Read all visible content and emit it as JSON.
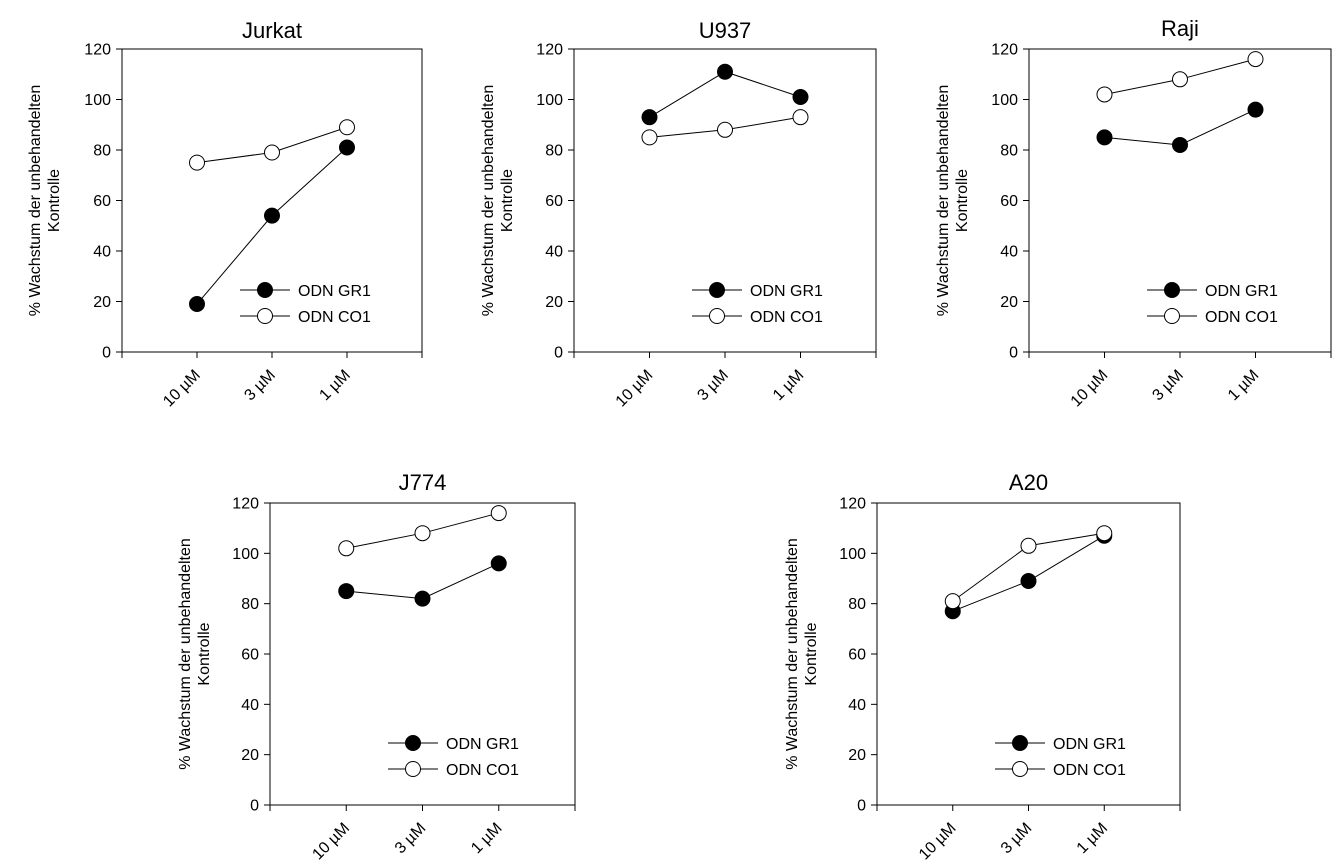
{
  "colors": {
    "filled": "#000000",
    "open": "#ffffff",
    "line": "#000000"
  },
  "chart_data": [
    {
      "type": "line",
      "title": "Jurkat",
      "ylabel_lines": [
        "% Wachstum der unbehandelten",
        "Kontrolle"
      ],
      "categories": [
        "10 µM",
        "3 µM",
        "1 µM"
      ],
      "ylim": [
        0,
        120
      ],
      "yticks": [
        "0",
        "20",
        "40",
        "60",
        "80",
        "100",
        "120"
      ],
      "legend": "bottom-right",
      "series": [
        {
          "name": "ODN GR1",
          "marker": "filled",
          "values": [
            19,
            54,
            81
          ]
        },
        {
          "name": "ODN CO1",
          "marker": "open",
          "values": [
            75,
            79,
            89
          ]
        }
      ]
    },
    {
      "type": "line",
      "title": "U937",
      "ylabel_lines": [
        "% Wachstum der unbehandelten",
        "Kontrolle"
      ],
      "categories": [
        "10 µM",
        "3 µM",
        "1 µM"
      ],
      "ylim": [
        0,
        120
      ],
      "yticks": [
        "0",
        "20",
        "40",
        "60",
        "80",
        "100",
        "120"
      ],
      "legend": "bottom-right",
      "series": [
        {
          "name": "ODN GR1",
          "marker": "filled",
          "values": [
            93,
            111,
            101
          ]
        },
        {
          "name": "ODN CO1",
          "marker": "open",
          "values": [
            85,
            88,
            93
          ]
        }
      ]
    },
    {
      "type": "line",
      "title": "Raji",
      "ylabel_lines": [
        "% Wachstum der unbehandelten",
        "Kontrolle"
      ],
      "categories": [
        "10 µM",
        "3 µM",
        "1 µM"
      ],
      "ylim": [
        0,
        120
      ],
      "yticks": [
        "0",
        "20",
        "40",
        "60",
        "80",
        "100",
        "120"
      ],
      "legend": "bottom-right",
      "series": [
        {
          "name": "ODN GR1",
          "marker": "filled",
          "values": [
            85,
            82,
            96
          ]
        },
        {
          "name": "ODN CO1",
          "marker": "open",
          "values": [
            102,
            108,
            116
          ]
        }
      ]
    },
    {
      "type": "line",
      "title": "J774",
      "ylabel_lines": [
        "% Wachstum der unbehandelten",
        "Kontrolle"
      ],
      "categories": [
        "10 µM",
        "3 µM",
        "1 µM"
      ],
      "ylim": [
        0,
        120
      ],
      "yticks": [
        "0",
        "20",
        "40",
        "60",
        "80",
        "100",
        "120"
      ],
      "legend": "bottom-right",
      "series": [
        {
          "name": "ODN GR1",
          "marker": "filled",
          "values": [
            85,
            82,
            96
          ]
        },
        {
          "name": "ODN CO1",
          "marker": "open",
          "values": [
            102,
            108,
            116
          ]
        }
      ]
    },
    {
      "type": "line",
      "title": "A20",
      "ylabel_lines": [
        "% Wachstum der unbehandelten",
        "Kontrolle"
      ],
      "categories": [
        "10 µM",
        "3 µM",
        "1 µM"
      ],
      "ylim": [
        0,
        120
      ],
      "yticks": [
        "0",
        "20",
        "40",
        "60",
        "80",
        "100",
        "120"
      ],
      "legend": "bottom-right",
      "series": [
        {
          "name": "ODN GR1",
          "marker": "filled",
          "values": [
            77,
            89,
            107
          ]
        },
        {
          "name": "ODN CO1",
          "marker": "open",
          "values": [
            81,
            103,
            108
          ]
        }
      ]
    }
  ]
}
